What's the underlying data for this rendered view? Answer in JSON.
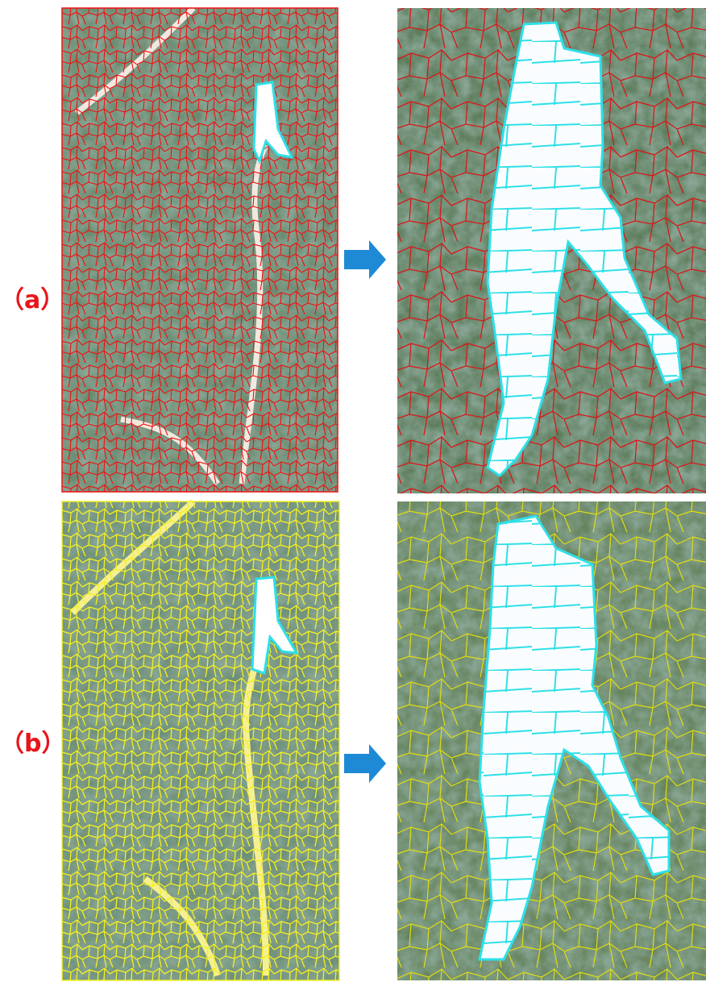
{
  "labels": {
    "a": "（a）",
    "b": "（b）"
  }
}
